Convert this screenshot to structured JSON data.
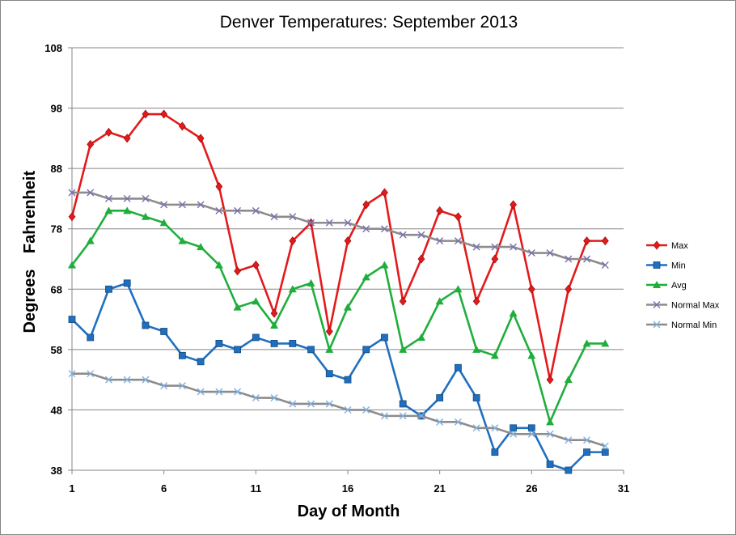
{
  "chart_data": {
    "type": "line",
    "title": "Denver Temperatures: September 2013",
    "xlabel": "Day of Month",
    "ylabel_parts": [
      "Degrees",
      "Fahrenheit"
    ],
    "xlim": [
      1,
      31
    ],
    "ylim": [
      38,
      108
    ],
    "x_ticks": [
      1,
      6,
      11,
      16,
      21,
      26,
      31
    ],
    "y_ticks": [
      38,
      48,
      58,
      68,
      78,
      88,
      98,
      108
    ],
    "grid": "horizontal",
    "legend_position": "right",
    "x": [
      1,
      2,
      3,
      4,
      5,
      6,
      7,
      8,
      9,
      10,
      11,
      12,
      13,
      14,
      15,
      16,
      17,
      18,
      19,
      20,
      21,
      22,
      23,
      24,
      25,
      26,
      27,
      28,
      29,
      30
    ],
    "series": [
      {
        "name": "Max",
        "color": "#e31a1c",
        "marker": "diamond",
        "values": [
          80,
          92,
          94,
          93,
          97,
          97,
          95,
          93,
          85,
          71,
          72,
          64,
          76,
          79,
          61,
          76,
          82,
          84,
          66,
          73,
          81,
          80,
          66,
          73,
          82,
          68,
          53,
          68,
          76,
          76
        ]
      },
      {
        "name": "Min",
        "color": "#1f6fc1",
        "marker": "square",
        "values": [
          63,
          60,
          68,
          69,
          62,
          61,
          57,
          56,
          59,
          58,
          60,
          59,
          59,
          58,
          54,
          53,
          58,
          60,
          49,
          47,
          50,
          55,
          50,
          41,
          45,
          45,
          39,
          38,
          41,
          41
        ]
      },
      {
        "name": "Avg",
        "color": "#1fae3c",
        "marker": "triangle",
        "values": [
          72,
          76,
          81,
          81,
          80,
          79,
          76,
          75,
          72,
          65,
          66,
          62,
          68,
          69,
          58,
          65,
          70,
          72,
          58,
          60,
          66,
          68,
          58,
          57,
          64,
          57,
          46,
          53,
          59,
          59
        ]
      },
      {
        "name": "Normal Max",
        "color": "#8c8c8c",
        "marker": "x",
        "values": [
          84,
          84,
          83,
          83,
          83,
          82,
          82,
          82,
          81,
          81,
          81,
          80,
          80,
          79,
          79,
          79,
          78,
          78,
          77,
          77,
          76,
          76,
          75,
          75,
          75,
          74,
          74,
          73,
          73,
          72
        ]
      },
      {
        "name": "Normal Min",
        "color": "#8c8c8c",
        "marker": "x-blue",
        "values": [
          54,
          54,
          53,
          53,
          53,
          52,
          52,
          51,
          51,
          51,
          50,
          50,
          49,
          49,
          49,
          48,
          48,
          47,
          47,
          47,
          46,
          46,
          45,
          45,
          44,
          44,
          44,
          43,
          43,
          42
        ]
      }
    ]
  }
}
